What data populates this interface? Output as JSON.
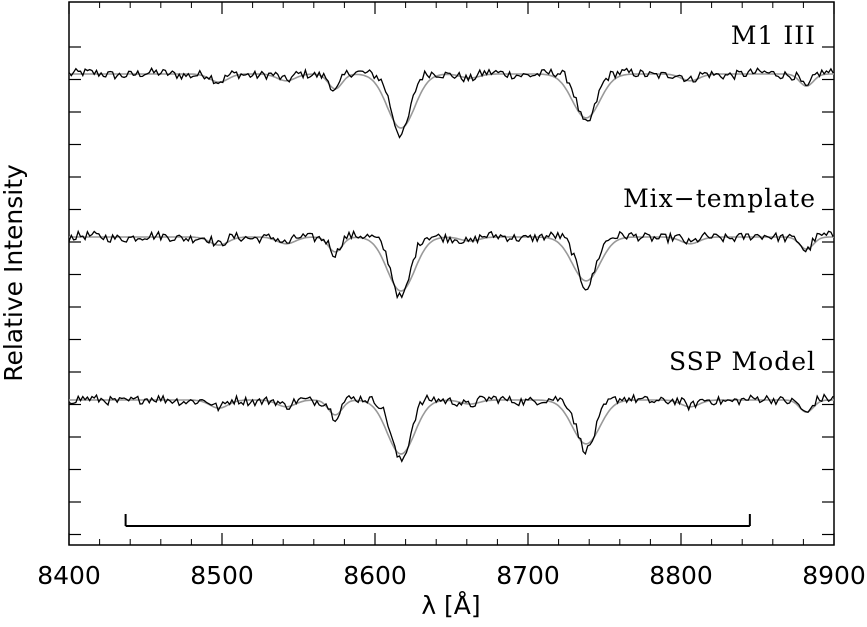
{
  "chart_data": {
    "type": "line",
    "xlabel": "λ [Å]",
    "ylabel": "Relative Intensity",
    "xlim": [
      8400,
      8900
    ],
    "x_ticks": [
      "8400",
      "8500",
      "8600",
      "8700",
      "8800",
      "8900"
    ],
    "grid": false,
    "fit_range": [
      8437,
      8845
    ],
    "panels": [
      {
        "label": "M1  III",
        "offset": 2.0
      },
      {
        "label": "Mix−template",
        "offset": 1.0
      },
      {
        "label": "SSP  Model",
        "offset": 0.0
      }
    ],
    "series": [
      {
        "role": "observed",
        "color": "#000000"
      },
      {
        "role": "template",
        "color": "#999999"
      }
    ],
    "model": {
      "continuum": 1.0,
      "lines": [
        {
          "center": 8498,
          "depth": 0.12,
          "width": 4
        },
        {
          "center": 8542,
          "depth": 0.1,
          "width": 4
        },
        {
          "center": 8574,
          "depth": 0.22,
          "width": 3
        },
        {
          "center": 8617,
          "depth": 0.8,
          "width": 6
        },
        {
          "center": 8662,
          "depth": 0.06,
          "width": 4
        },
        {
          "center": 8738,
          "depth": 0.65,
          "width": 6
        },
        {
          "center": 8806,
          "depth": 0.1,
          "width": 4
        },
        {
          "center": 8882,
          "depth": 0.18,
          "width": 3
        }
      ]
    }
  }
}
